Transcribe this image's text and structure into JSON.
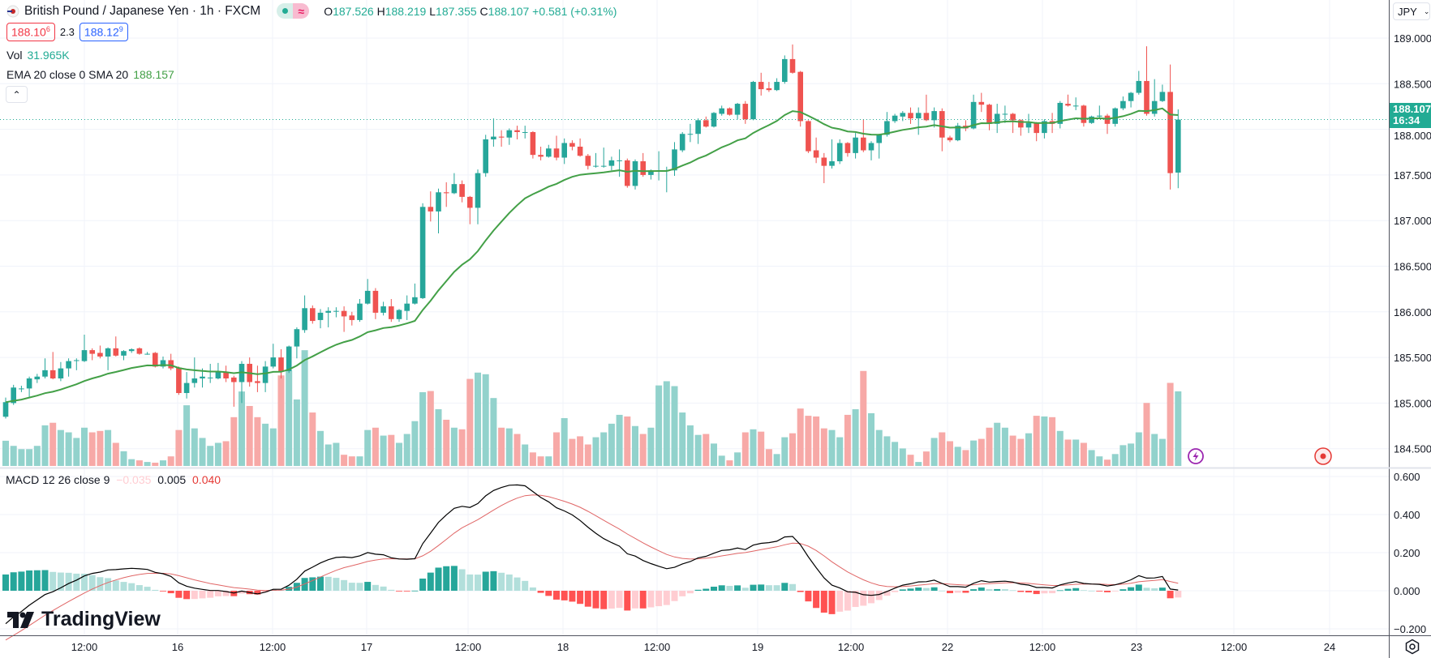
{
  "header": {
    "symbol_title": "British Pound / Japanese Yen · 1h · FXCM",
    "market_status_icon": "green-dot-icon",
    "delayed_icon": "approx-icon",
    "delayed_symbol": "≈",
    "ohlc": {
      "o_label": "O",
      "o": "187.526",
      "h_label": "H",
      "h": "188.219",
      "l_label": "L",
      "l": "187.355",
      "c_label": "C",
      "c": "188.107",
      "change": "+0.581 (+0.31%)"
    },
    "bid": {
      "main": "188.10",
      "pip": "6"
    },
    "spread": "2.3",
    "ask": {
      "main": "188.12",
      "pip": "9"
    },
    "volume": {
      "label": "Vol",
      "value": "31.965K"
    },
    "ema": {
      "label": "EMA 20 close 0 SMA 20",
      "value": "188.157"
    },
    "collapse_icon": "chevron-up-icon"
  },
  "price_axis": {
    "currency": "JPY",
    "ticks": [
      "189.000",
      "188.500",
      "188.000",
      "187.500",
      "187.000",
      "186.500",
      "186.000",
      "185.500",
      "185.000",
      "184.500"
    ],
    "last_price": "188.107",
    "countdown": "16:34"
  },
  "macd": {
    "label": "MACD 12 26 close 9",
    "histogram": "−0.035",
    "macd": "0.005",
    "signal": "0.040",
    "ticks": [
      "0.600",
      "0.400",
      "0.200",
      "0.000",
      "−0.200"
    ]
  },
  "time_axis": {
    "labels": [
      "12:00",
      "16",
      "12:00",
      "17",
      "12:00",
      "18",
      "12:00",
      "19",
      "12:00",
      "22",
      "12:00",
      "23",
      "12:00",
      "24"
    ]
  },
  "branding": {
    "logo_text": "TradingView"
  },
  "markers": {
    "lightning_icon": "lightning-icon",
    "target_icon": "target-icon"
  },
  "colors": {
    "up": "#26a69a",
    "down": "#ef5350",
    "vol_up": "#92d2cc",
    "vol_down": "#f7a9a7",
    "ema": "#43a047",
    "macd_line": "#000000",
    "signal_line": "#e06666",
    "hist_up_strong": "#26a69a",
    "hist_up_weak": "#b2dfdb",
    "hist_down_strong": "#ff5252",
    "hist_down_weak": "#ffcdd2",
    "last_price": "#22ab94"
  },
  "chart_data": {
    "type": "candlestick",
    "title": "British Pound / Japanese Yen · 1h · FXCM",
    "ylim": [
      184.4,
      189.1
    ],
    "grid": true,
    "x_ticks": [
      "12:00",
      "16",
      "12:00",
      "17",
      "12:00",
      "18",
      "12:00",
      "19",
      "12:00",
      "22",
      "12:00",
      "23",
      "12:00",
      "24"
    ],
    "ohlc": [
      [
        184.85,
        185.06,
        184.83,
        185.01
      ],
      [
        185.0,
        185.2,
        184.98,
        185.17
      ],
      [
        185.16,
        185.19,
        185.12,
        185.16
      ],
      [
        185.16,
        185.29,
        185.07,
        185.27
      ],
      [
        185.26,
        185.32,
        185.22,
        185.29
      ],
      [
        185.29,
        185.49,
        185.27,
        185.36
      ],
      [
        185.36,
        185.56,
        185.26,
        185.27
      ],
      [
        185.27,
        185.45,
        185.24,
        185.38
      ],
      [
        185.38,
        185.49,
        185.29,
        185.46
      ],
      [
        185.47,
        185.49,
        185.36,
        185.47
      ],
      [
        185.46,
        185.75,
        185.45,
        185.58
      ],
      [
        185.58,
        185.6,
        185.47,
        185.54
      ],
      [
        185.55,
        185.63,
        185.49,
        185.51
      ],
      [
        185.51,
        185.61,
        185.36,
        185.6
      ],
      [
        185.6,
        185.73,
        185.51,
        185.52
      ],
      [
        185.52,
        185.58,
        185.47,
        185.57
      ],
      [
        185.57,
        185.6,
        185.55,
        185.59
      ],
      [
        185.6,
        185.61,
        185.53,
        185.54
      ],
      [
        185.54,
        185.56,
        185.53,
        185.54
      ],
      [
        185.55,
        185.56,
        185.39,
        185.4
      ],
      [
        185.4,
        185.51,
        185.38,
        185.47
      ],
      [
        185.47,
        185.54,
        185.36,
        185.38
      ],
      [
        185.39,
        185.4,
        185.09,
        185.11
      ],
      [
        185.11,
        185.34,
        185.05,
        185.22
      ],
      [
        185.22,
        185.5,
        185.17,
        185.27
      ],
      [
        185.27,
        185.38,
        185.17,
        185.29
      ],
      [
        185.28,
        185.43,
        185.22,
        185.28
      ],
      [
        185.27,
        185.44,
        185.26,
        185.34
      ],
      [
        185.34,
        185.41,
        185.23,
        185.27
      ],
      [
        185.28,
        185.3,
        184.96,
        185.23
      ],
      [
        185.23,
        185.46,
        185.0,
        185.43
      ],
      [
        185.43,
        185.5,
        185.18,
        185.23
      ],
      [
        185.24,
        185.41,
        185.12,
        185.22
      ],
      [
        185.22,
        185.46,
        185.12,
        185.4
      ],
      [
        185.4,
        185.65,
        185.38,
        185.5
      ],
      [
        185.5,
        185.59,
        185.27,
        185.35
      ],
      [
        185.35,
        185.63,
        185.33,
        185.62
      ],
      [
        185.62,
        185.83,
        185.49,
        185.81
      ],
      [
        185.8,
        186.18,
        185.77,
        186.04
      ],
      [
        186.04,
        186.07,
        185.87,
        185.9
      ],
      [
        185.91,
        186.03,
        185.82,
        185.99
      ],
      [
        185.99,
        186.05,
        185.83,
        186.01
      ],
      [
        186.01,
        186.05,
        185.94,
        186.01
      ],
      [
        186.01,
        186.06,
        185.78,
        185.95
      ],
      [
        185.96,
        186.0,
        185.85,
        185.91
      ],
      [
        185.91,
        186.14,
        185.89,
        186.09
      ],
      [
        186.09,
        186.36,
        186.08,
        186.23
      ],
      [
        186.23,
        186.26,
        185.92,
        185.99
      ],
      [
        185.99,
        186.11,
        185.96,
        186.06
      ],
      [
        186.06,
        186.14,
        185.89,
        185.92
      ],
      [
        185.92,
        186.03,
        185.89,
        186.02
      ],
      [
        186.01,
        186.18,
        185.91,
        186.09
      ],
      [
        186.09,
        186.31,
        186.08,
        186.16
      ],
      [
        186.15,
        187.19,
        186.14,
        187.15
      ],
      [
        187.15,
        187.32,
        186.99,
        187.1
      ],
      [
        187.1,
        187.35,
        186.86,
        187.31
      ],
      [
        187.31,
        187.42,
        187.15,
        187.3
      ],
      [
        187.3,
        187.52,
        187.29,
        187.4
      ],
      [
        187.4,
        187.44,
        187.2,
        187.26
      ],
      [
        187.26,
        187.27,
        186.96,
        187.14
      ],
      [
        187.14,
        187.56,
        186.96,
        187.52
      ],
      [
        187.52,
        187.94,
        187.48,
        187.89
      ],
      [
        187.89,
        188.12,
        187.81,
        187.92
      ],
      [
        187.92,
        187.99,
        187.81,
        187.91
      ],
      [
        187.91,
        188.01,
        187.83,
        187.99
      ],
      [
        187.99,
        188.04,
        187.89,
        187.97
      ],
      [
        187.97,
        188.04,
        187.9,
        187.97
      ],
      [
        187.97,
        187.98,
        187.68,
        187.72
      ],
      [
        187.72,
        187.81,
        187.66,
        187.7
      ],
      [
        187.7,
        187.83,
        187.69,
        187.79
      ],
      [
        187.79,
        187.93,
        187.66,
        187.69
      ],
      [
        187.69,
        187.9,
        187.62,
        187.85
      ],
      [
        187.85,
        187.88,
        187.77,
        187.81
      ],
      [
        187.81,
        187.9,
        187.7,
        187.71
      ],
      [
        187.71,
        187.73,
        187.56,
        187.6
      ],
      [
        187.6,
        187.74,
        187.58,
        187.6
      ],
      [
        187.6,
        187.8,
        187.58,
        187.6
      ],
      [
        187.6,
        187.7,
        187.55,
        187.66
      ],
      [
        187.66,
        187.78,
        187.48,
        187.66
      ],
      [
        187.66,
        187.68,
        187.36,
        187.38
      ],
      [
        187.38,
        187.67,
        187.34,
        187.65
      ],
      [
        187.65,
        187.74,
        187.48,
        187.5
      ],
      [
        187.5,
        187.56,
        187.45,
        187.55
      ],
      [
        187.55,
        187.76,
        187.44,
        187.55
      ],
      [
        187.55,
        187.59,
        187.31,
        187.55
      ],
      [
        187.55,
        187.86,
        187.49,
        187.78
      ],
      [
        187.77,
        187.97,
        187.75,
        187.95
      ],
      [
        187.95,
        188.06,
        187.86,
        187.95
      ],
      [
        187.95,
        188.12,
        187.84,
        188.1
      ],
      [
        188.1,
        188.14,
        188.02,
        188.03
      ],
      [
        188.03,
        188.19,
        188.02,
        188.18
      ],
      [
        188.17,
        188.26,
        188.15,
        188.23
      ],
      [
        188.23,
        188.24,
        188.15,
        188.16
      ],
      [
        188.16,
        188.29,
        188.11,
        188.28
      ],
      [
        188.28,
        188.31,
        188.06,
        188.11
      ],
      [
        188.11,
        188.53,
        188.1,
        188.52
      ],
      [
        188.52,
        188.62,
        188.37,
        188.44
      ],
      [
        188.45,
        188.52,
        188.41,
        188.43
      ],
      [
        188.43,
        188.56,
        188.42,
        188.52
      ],
      [
        188.52,
        188.81,
        188.5,
        188.77
      ],
      [
        188.77,
        188.93,
        188.61,
        188.62
      ],
      [
        188.63,
        188.64,
        188.03,
        188.09
      ],
      [
        188.09,
        188.1,
        187.74,
        187.76
      ],
      [
        187.77,
        187.91,
        187.63,
        187.69
      ],
      [
        187.69,
        187.74,
        187.41,
        187.6
      ],
      [
        187.6,
        187.89,
        187.57,
        187.65
      ],
      [
        187.65,
        187.89,
        187.62,
        187.85
      ],
      [
        187.85,
        187.86,
        187.7,
        187.74
      ],
      [
        187.74,
        187.96,
        187.68,
        187.91
      ],
      [
        187.91,
        188.11,
        187.75,
        187.77
      ],
      [
        187.77,
        187.87,
        187.66,
        187.85
      ],
      [
        187.85,
        187.95,
        187.68,
        187.94
      ],
      [
        187.94,
        188.19,
        187.92,
        188.09
      ],
      [
        188.09,
        188.17,
        188.07,
        188.15
      ],
      [
        188.14,
        188.2,
        188.09,
        188.18
      ],
      [
        188.18,
        188.24,
        188.06,
        188.12
      ],
      [
        188.12,
        188.24,
        187.94,
        188.18
      ],
      [
        188.18,
        188.38,
        188.09,
        188.1
      ],
      [
        188.1,
        188.24,
        188.02,
        188.2
      ],
      [
        188.2,
        188.23,
        187.76,
        187.91
      ],
      [
        187.91,
        187.93,
        187.86,
        187.88
      ],
      [
        187.88,
        188.07,
        187.87,
        188.04
      ],
      [
        188.04,
        188.1,
        187.98,
        188.01
      ],
      [
        188.01,
        188.38,
        188.0,
        188.3
      ],
      [
        188.3,
        188.4,
        188.19,
        188.27
      ],
      [
        188.27,
        188.28,
        187.99,
        188.06
      ],
      [
        188.06,
        188.28,
        187.96,
        188.17
      ],
      [
        188.17,
        188.26,
        188.07,
        188.17
      ],
      [
        188.17,
        188.18,
        187.96,
        188.1
      ],
      [
        188.1,
        188.11,
        187.93,
        188.02
      ],
      [
        188.02,
        188.17,
        187.96,
        188.07
      ],
      [
        188.07,
        188.08,
        187.87,
        187.96
      ],
      [
        187.96,
        188.11,
        187.9,
        188.09
      ],
      [
        188.09,
        188.18,
        187.96,
        188.06
      ],
      [
        188.06,
        188.31,
        188.01,
        188.29
      ],
      [
        188.28,
        188.38,
        188.25,
        188.26
      ],
      [
        188.26,
        188.35,
        188.21,
        188.26
      ],
      [
        188.26,
        188.27,
        188.03,
        188.07
      ],
      [
        188.07,
        188.15,
        188.06,
        188.14
      ],
      [
        188.14,
        188.26,
        188.13,
        188.15
      ],
      [
        188.15,
        188.17,
        187.95,
        188.06
      ],
      [
        188.06,
        188.24,
        188.03,
        188.23
      ],
      [
        188.23,
        188.36,
        188.21,
        188.31
      ],
      [
        188.31,
        188.41,
        188.24,
        188.4
      ],
      [
        188.4,
        188.64,
        188.38,
        188.53
      ],
      [
        188.53,
        188.91,
        188.15,
        188.17
      ],
      [
        188.17,
        188.55,
        188.14,
        188.31
      ],
      [
        188.31,
        188.49,
        188.3,
        188.41
      ],
      [
        188.41,
        188.71,
        187.34,
        187.52
      ],
      [
        187.526,
        188.219,
        187.355,
        188.107
      ]
    ],
    "volume_k": [
      10.8,
      8.6,
      7.2,
      7.2,
      8.6,
      17.4,
      18.5,
      15.4,
      14.4,
      12.0,
      16.4,
      14.4,
      15.0,
      15.4,
      9.9,
      6.3,
      2.9,
      2.4,
      1.7,
      1.4,
      2.4,
      4.1,
      15.4,
      26.0,
      16.1,
      12.0,
      8.6,
      9.9,
      10.6,
      20.9,
      31.9,
      25.7,
      20.9,
      18.1,
      16.1,
      38.8,
      40.8,
      28.5,
      49.6,
      22.9,
      15.0,
      9.2,
      9.9,
      4.8,
      4.1,
      4.1,
      15.4,
      16.4,
      13.0,
      13.3,
      9.9,
      13.7,
      19.2,
      31.6,
      32.1,
      24.3,
      19.8,
      16.4,
      15.7,
      37.3,
      40.0,
      39.3,
      29.1,
      16.4,
      16.1,
      13.7,
      9.2,
      5.8,
      4.1,
      4.1,
      14.4,
      20.5,
      11.6,
      12.7,
      9.2,
      12.3,
      14.4,
      18.1,
      21.9,
      21.2,
      17.1,
      13.7,
      16.4,
      34.5,
      36.3,
      34.2,
      22.9,
      17.4,
      13.3,
      13.7,
      9.6,
      4.4,
      2.4,
      5.8,
      14.4,
      15.7,
      14.7,
      7.2,
      5.1,
      12.3,
      14.0,
      24.6,
      21.5,
      21.2,
      16.1,
      15.4,
      12.3,
      21.9,
      24.3,
      40.7,
      22.6,
      15.4,
      12.7,
      10.3,
      7.5,
      4.8,
      1.7,
      6.2,
      12.0,
      14.4,
      10.6,
      8.2,
      6.8,
      10.9,
      11.6,
      16.4,
      18.5,
      16.4,
      13.0,
      11.6,
      14.0,
      21.5,
      21.2,
      20.9,
      15.0,
      11.3,
      11.3,
      9.9,
      6.8,
      4.1,
      2.7,
      5.1,
      8.9,
      9.6,
      14.4,
      27.0,
      13.7,
      11.6,
      35.6,
      31.965
    ],
    "ema_period": 20,
    "macd_params": {
      "fast": 12,
      "slow": 26,
      "signal": 9
    },
    "macd_ylim": [
      -0.22,
      0.62
    ]
  }
}
